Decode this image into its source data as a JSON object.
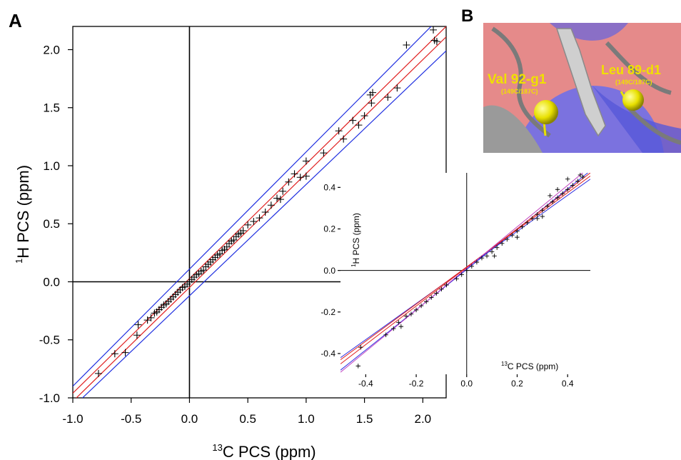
{
  "panel_labels": {
    "a": "A",
    "b": "B"
  },
  "structure_labels": {
    "left_residue": "Val 92-g1",
    "left_sub": "(149C/187C)",
    "right_residue": "Leu 89-d1",
    "right_sub": "(149C/187C)",
    "colors": {
      "label": "#f0e000",
      "sphere": "#e8e000",
      "bg_red": "#e58a8a",
      "bg_blue": "#6f6fe8",
      "ribbon": "#8a8a8a"
    }
  },
  "chart_data": [
    {
      "id": "main",
      "type": "scatter",
      "title": "",
      "xlabel": {
        "sup": "13",
        "text": "C PCS (ppm)"
      },
      "ylabel": {
        "sup": "1",
        "text": "H PCS (ppm)"
      },
      "xlim": [
        -1.0,
        2.2
      ],
      "ylim": [
        -1.0,
        2.2
      ],
      "xticks": [
        -1.0,
        -0.5,
        0.0,
        0.5,
        1.0,
        1.5,
        2.0
      ],
      "yticks": [
        -1.0,
        -0.5,
        0.0,
        0.5,
        1.0,
        1.5,
        2.0
      ],
      "xtick_labels": [
        "-1.0",
        "-0.5",
        "0.0",
        "0.5",
        "1.0",
        "1.5",
        "2.0"
      ],
      "ytick_labels": [
        "-1.0",
        "-0.5",
        "0.0",
        "0.5",
        "1.0",
        "1.5",
        "2.0"
      ],
      "grid": false,
      "zero_lines": true,
      "marker": "+",
      "lines": [
        {
          "color": "#1f2fe0",
          "x": [
            -1.0,
            2.2
          ],
          "y": [
            -0.9,
            2.33
          ]
        },
        {
          "color": "#1f2fe0",
          "x": [
            -1.0,
            2.2
          ],
          "y": [
            -1.08,
            1.99
          ]
        },
        {
          "color": "#e02020",
          "x": [
            -1.0,
            2.2
          ],
          "y": [
            -0.96,
            2.2
          ]
        },
        {
          "color": "#e02020",
          "x": [
            -1.0,
            2.2
          ],
          "y": [
            -1.03,
            2.11
          ]
        }
      ],
      "points": [
        [
          -0.78,
          -0.79
        ],
        [
          -0.64,
          -0.62
        ],
        [
          -0.55,
          -0.61
        ],
        [
          -0.44,
          -0.37
        ],
        [
          -0.45,
          -0.46
        ],
        [
          -0.36,
          -0.33
        ],
        [
          -0.33,
          -0.31
        ],
        [
          -0.3,
          -0.27
        ],
        [
          -0.28,
          -0.26
        ],
        [
          -0.26,
          -0.24
        ],
        [
          -0.24,
          -0.22
        ],
        [
          -0.22,
          -0.2
        ],
        [
          -0.2,
          -0.19
        ],
        [
          -0.18,
          -0.17
        ],
        [
          -0.16,
          -0.15
        ],
        [
          -0.14,
          -0.13
        ],
        [
          -0.12,
          -0.11
        ],
        [
          -0.1,
          -0.09
        ],
        [
          -0.08,
          -0.07
        ],
        [
          -0.06,
          -0.05
        ],
        [
          -0.04,
          -0.04
        ],
        [
          -0.02,
          -0.02
        ],
        [
          0.0,
          0.0
        ],
        [
          0.02,
          0.02
        ],
        [
          0.04,
          0.04
        ],
        [
          0.06,
          0.06
        ],
        [
          0.08,
          0.07
        ],
        [
          0.1,
          0.09
        ],
        [
          0.12,
          0.1
        ],
        [
          0.14,
          0.13
        ],
        [
          0.16,
          0.15
        ],
        [
          0.18,
          0.17
        ],
        [
          0.2,
          0.19
        ],
        [
          0.22,
          0.21
        ],
        [
          0.24,
          0.23
        ],
        [
          0.26,
          0.24
        ],
        [
          0.28,
          0.27
        ],
        [
          0.3,
          0.28
        ],
        [
          0.32,
          0.3
        ],
        [
          0.34,
          0.33
        ],
        [
          0.36,
          0.35
        ],
        [
          0.38,
          0.36
        ],
        [
          0.4,
          0.39
        ],
        [
          0.42,
          0.41
        ],
        [
          0.44,
          0.42
        ],
        [
          0.46,
          0.44
        ],
        [
          0.5,
          0.49
        ],
        [
          0.55,
          0.52
        ],
        [
          0.6,
          0.55
        ],
        [
          0.65,
          0.6
        ],
        [
          0.7,
          0.66
        ],
        [
          0.75,
          0.72
        ],
        [
          0.78,
          0.71
        ],
        [
          0.8,
          0.78
        ],
        [
          0.85,
          0.86
        ],
        [
          0.9,
          0.93
        ],
        [
          0.95,
          0.9
        ],
        [
          1.0,
          0.91
        ],
        [
          1.0,
          1.04
        ],
        [
          1.15,
          1.11
        ],
        [
          1.28,
          1.3
        ],
        [
          1.32,
          1.23
        ],
        [
          1.4,
          1.39
        ],
        [
          1.45,
          1.35
        ],
        [
          1.5,
          1.43
        ],
        [
          1.55,
          1.61
        ],
        [
          1.56,
          1.54
        ],
        [
          1.57,
          1.63
        ],
        [
          1.7,
          1.59
        ],
        [
          1.78,
          1.67
        ],
        [
          1.86,
          2.04
        ],
        [
          2.09,
          2.17
        ],
        [
          2.1,
          2.08
        ],
        [
          2.12,
          2.07
        ]
      ]
    },
    {
      "id": "inset",
      "type": "scatter",
      "title": "",
      "xlabel": {
        "sup": "13",
        "text": "C PCS (ppm)"
      },
      "ylabel": {
        "sup": "1",
        "text": "H PCS (ppm)"
      },
      "xlim": [
        -0.5,
        0.49
      ],
      "ylim": [
        -0.5,
        0.47
      ],
      "xticks": [
        -0.4,
        -0.2,
        0.0,
        0.2,
        0.4
      ],
      "yticks": [
        -0.4,
        -0.2,
        0.0,
        0.2,
        0.4
      ],
      "xtick_labels": [
        "-0.4",
        "-0.2",
        "0.0",
        "0.2",
        "0.4"
      ],
      "ytick_labels": [
        "-0.4",
        "-0.2",
        "0.0",
        "0.2",
        "0.4"
      ],
      "grid": false,
      "zero_lines": true,
      "marker": "+",
      "lines": [
        {
          "color": "#3030e0",
          "x": [
            -0.5,
            0.49
          ],
          "y": [
            -0.48,
            0.48
          ]
        },
        {
          "color": "#3030e0",
          "x": [
            -0.5,
            0.49
          ],
          "y": [
            -0.42,
            0.44
          ]
        },
        {
          "color": "#e02020",
          "x": [
            -0.5,
            0.49
          ],
          "y": [
            -0.45,
            0.47
          ]
        },
        {
          "color": "#e02020",
          "x": [
            -0.5,
            0.49
          ],
          "y": [
            -0.43,
            0.455
          ]
        },
        {
          "color": "#c040c0",
          "x": [
            -0.5,
            0.49
          ],
          "y": [
            -0.49,
            0.5
          ]
        }
      ],
      "points": [
        [
          -0.42,
          -0.37
        ],
        [
          -0.43,
          -0.46
        ],
        [
          -0.32,
          -0.31
        ],
        [
          -0.29,
          -0.28
        ],
        [
          -0.27,
          -0.25
        ],
        [
          -0.26,
          -0.27
        ],
        [
          -0.24,
          -0.22
        ],
        [
          -0.22,
          -0.21
        ],
        [
          -0.2,
          -0.19
        ],
        [
          -0.18,
          -0.17
        ],
        [
          -0.16,
          -0.15
        ],
        [
          -0.14,
          -0.13
        ],
        [
          -0.12,
          -0.11
        ],
        [
          -0.1,
          -0.09
        ],
        [
          -0.08,
          -0.07
        ],
        [
          -0.04,
          -0.04
        ],
        [
          -0.02,
          -0.02
        ],
        [
          0.0,
          0.0
        ],
        [
          0.02,
          0.02
        ],
        [
          0.04,
          0.04
        ],
        [
          0.06,
          0.06
        ],
        [
          0.08,
          0.07
        ],
        [
          0.1,
          0.09
        ],
        [
          0.12,
          0.11
        ],
        [
          0.14,
          0.13
        ],
        [
          0.16,
          0.15
        ],
        [
          0.18,
          0.17
        ],
        [
          0.2,
          0.19
        ],
        [
          0.22,
          0.21
        ],
        [
          0.24,
          0.23
        ],
        [
          0.26,
          0.25
        ],
        [
          0.28,
          0.27
        ],
        [
          0.3,
          0.29
        ],
        [
          0.32,
          0.31
        ],
        [
          0.34,
          0.33
        ],
        [
          0.36,
          0.35
        ],
        [
          0.38,
          0.37
        ],
        [
          0.4,
          0.39
        ],
        [
          0.42,
          0.41
        ],
        [
          0.44,
          0.43
        ],
        [
          0.46,
          0.45
        ],
        [
          0.33,
          0.36
        ],
        [
          0.3,
          0.26
        ],
        [
          0.36,
          0.39
        ],
        [
          0.4,
          0.44
        ],
        [
          0.45,
          0.46
        ],
        [
          0.11,
          0.07
        ],
        [
          0.2,
          0.16
        ],
        [
          0.28,
          0.25
        ]
      ]
    }
  ]
}
